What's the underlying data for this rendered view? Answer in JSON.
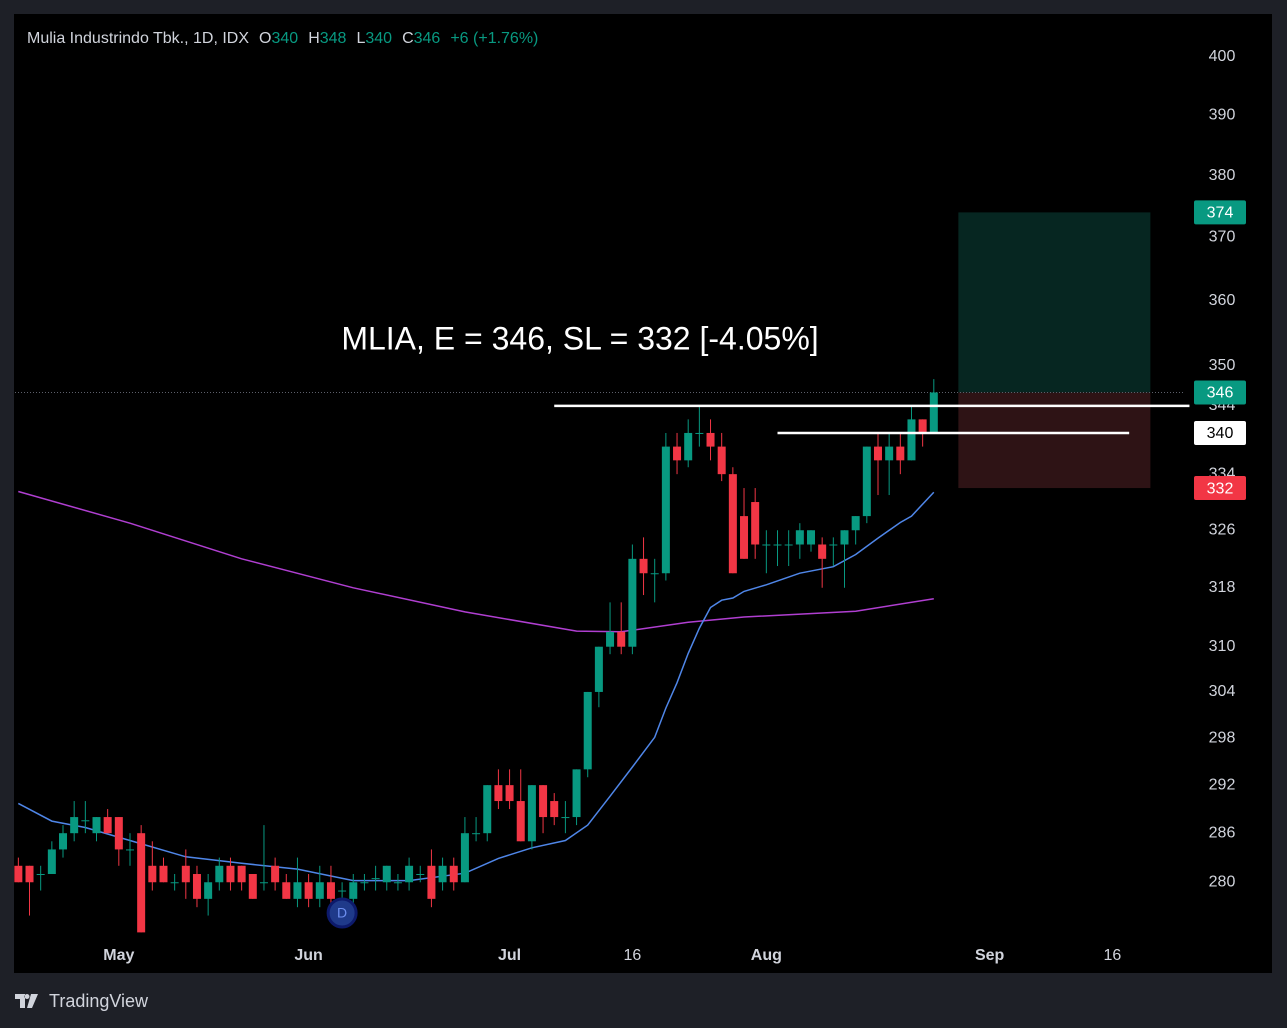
{
  "chart_data": {
    "type": "candlestick",
    "title": "Mulia Industrindo Tbk., 1D, IDX",
    "legend_values": [
      {
        "label": "O",
        "value": 340
      },
      {
        "label": "H",
        "value": 348
      },
      {
        "label": "L",
        "value": 340
      },
      {
        "label": "C",
        "value": 346
      }
    ],
    "change": "+6 (+1.76%)",
    "annotation": "MLIA, E = 346, SL = 332 [-4.05%]",
    "log_scale": true,
    "grid": false,
    "up_color": "#089981",
    "down_color": "#f23645",
    "ylim": [
      273.1,
      407.3
    ],
    "yticks": [
      280,
      286,
      292,
      298,
      304,
      310,
      318,
      326,
      334,
      344,
      350,
      360,
      370,
      380,
      390,
      400
    ],
    "xlim": [
      -0.3,
      104.5
    ],
    "xticks": [
      {
        "value": 9,
        "label": "May"
      },
      {
        "value": 26,
        "label": "Jun"
      },
      {
        "value": 44,
        "label": "Jul"
      },
      {
        "value": 55,
        "label": "16"
      },
      {
        "value": 67,
        "label": "Aug"
      },
      {
        "value": 87,
        "label": "Sep"
      },
      {
        "value": 98,
        "label": "16"
      }
    ],
    "candles": {
      "open": [
        282,
        282,
        281,
        281,
        284,
        286,
        287.6,
        286,
        288,
        288,
        284,
        286,
        282,
        282,
        280,
        282,
        281,
        278,
        280,
        282,
        282,
        281,
        280,
        282,
        280,
        278,
        280,
        278,
        280,
        279,
        278,
        280,
        280.5,
        280,
        280,
        280,
        281,
        282,
        280,
        282,
        280,
        286,
        286,
        292,
        292,
        290,
        285,
        292,
        290,
        288,
        288,
        294,
        304,
        310,
        312,
        310,
        322,
        320,
        320,
        338,
        336,
        340,
        340,
        338,
        334,
        328,
        330,
        324,
        324,
        324,
        324,
        324,
        324,
        324,
        324,
        326,
        328,
        338,
        336,
        338,
        336,
        342,
        340
      ],
      "high": [
        283,
        282,
        282,
        285,
        287,
        290,
        290,
        288,
        289,
        288,
        286,
        287,
        285,
        283,
        281,
        284,
        282,
        281,
        283,
        283,
        282,
        281,
        287,
        283,
        281,
        283,
        281,
        282,
        282,
        280,
        281,
        281,
        282,
        282,
        281,
        283,
        282,
        284,
        283,
        283,
        288,
        288,
        292,
        294,
        294,
        294,
        292,
        292,
        291,
        290,
        294,
        304,
        310,
        316,
        316,
        324,
        325,
        322,
        340,
        340,
        342,
        344,
        342,
        340,
        335,
        332,
        332,
        326,
        326,
        326,
        327,
        326,
        325,
        325,
        326,
        328,
        338,
        340,
        340,
        340,
        344,
        342,
        348
      ],
      "low": [
        280,
        276,
        279,
        281,
        283,
        285,
        286,
        285,
        286,
        282,
        282,
        274,
        279,
        280,
        279,
        278,
        277,
        276,
        279,
        279,
        279,
        278,
        279,
        279,
        278,
        277,
        277,
        277,
        277,
        278,
        277,
        279,
        279,
        279,
        279,
        279,
        280,
        277,
        279,
        279,
        280,
        285,
        285,
        289,
        289,
        285,
        284,
        286,
        287,
        286,
        287,
        293,
        302,
        309,
        309,
        309,
        317,
        316,
        319,
        334,
        335,
        338,
        336,
        333,
        320,
        322,
        322,
        320,
        321,
        321,
        322,
        323,
        318,
        321,
        318,
        324,
        327,
        331,
        331,
        334,
        336,
        338,
        340
      ],
      "close": [
        280,
        280,
        281,
        284,
        286,
        288,
        287.6,
        288,
        286,
        284,
        284,
        274,
        280,
        280,
        280,
        280,
        278,
        280,
        282,
        280,
        280,
        278,
        280,
        280,
        278,
        280,
        278,
        280,
        278,
        279,
        280,
        280,
        280.5,
        282,
        280,
        282,
        281,
        278,
        282,
        280,
        286,
        286,
        292,
        290,
        290,
        285,
        292,
        288,
        288,
        288,
        294,
        304,
        310,
        312,
        310,
        322,
        320,
        320,
        338,
        336,
        340,
        340,
        338,
        334,
        320,
        322,
        324,
        324,
        324,
        324,
        326,
        326,
        322,
        324,
        326,
        328,
        338,
        336,
        338,
        336,
        342,
        340,
        346
      ]
    },
    "overlays": [
      {
        "color": "#b03fd1",
        "x": [
          0,
          10,
          20,
          30,
          40,
          50,
          54,
          60,
          65,
          75,
          82
        ],
        "values": [
          331.5,
          327,
          322,
          318,
          314.7,
          312.1,
          312,
          313.3,
          314,
          314.8,
          316.5
        ]
      },
      {
        "color": "#4f86e8",
        "x": [
          0,
          3,
          6,
          10,
          15,
          20,
          25,
          30,
          35,
          40,
          43,
          46,
          49,
          51,
          53,
          55,
          57,
          58,
          59,
          60,
          61,
          62,
          63,
          64,
          65,
          67,
          70,
          73,
          75,
          77,
          79,
          80,
          82
        ],
        "values": [
          289.7,
          287.5,
          286.7,
          285.1,
          283.1,
          282.3,
          281.6,
          280.2,
          280.2,
          281.1,
          282.9,
          284.2,
          285.1,
          287,
          290.6,
          294.3,
          298.1,
          301.9,
          305.2,
          309.1,
          312.5,
          315.3,
          316.3,
          316.6,
          317.5,
          318.4,
          320,
          320.9,
          322.6,
          324.9,
          327.1,
          328,
          331.4
        ]
      }
    ],
    "position": {
      "target": 374,
      "entry": 346,
      "stop": 332,
      "x_start": 84.2,
      "x_end": 101.4
    },
    "levels": [
      {
        "value": 344,
        "x_start": 48,
        "x_end": 104.9
      },
      {
        "value": 340,
        "x_start": 68,
        "x_end": 99.5
      }
    ],
    "events": [
      {
        "x": 29,
        "label": "D"
      }
    ]
  },
  "footer": {
    "brand": "TradingView"
  }
}
